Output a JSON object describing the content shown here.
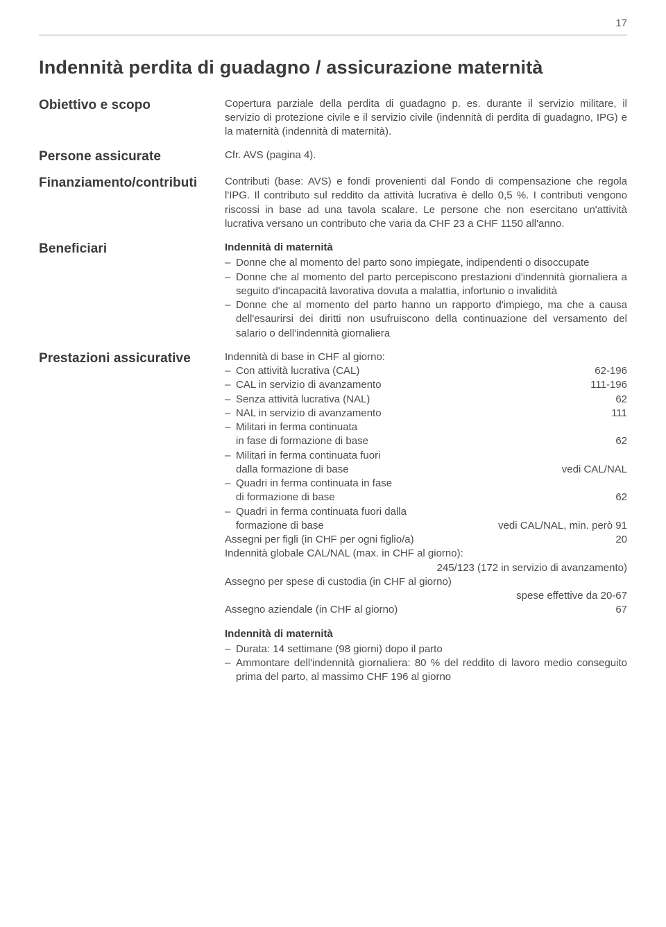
{
  "page_number": "17",
  "main_title": "Indennità perdita di guadagno / assicurazione maternità",
  "colors": {
    "text": "#3a3a3a",
    "body_text": "#4a4a4a",
    "rule": "#9a9a9a",
    "background": "#ffffff"
  },
  "typography": {
    "main_title_fontsize": 27,
    "side_label_fontsize": 19,
    "body_fontsize": 15,
    "subheading_fontsize": 15
  },
  "sections": {
    "obiettivo": {
      "label": "Obiettivo e scopo",
      "text": "Copertura parziale della perdita di guadagno p. es. durante il servizio militare, il servizio di protezione civile e il servizio civile (indennità di perdita di guadagno, IPG) e la maternità (indennità di maternità)."
    },
    "persone": {
      "label": "Persone assicurate",
      "text": "Cfr. AVS (pagina 4)."
    },
    "finanziamento": {
      "label": "Finanziamento/contributi",
      "text": "Contributi (base: AVS) e fondi provenienti dal Fondo di compensazione che regola l'IPG. Il contributo sul reddito da attività lucrativa è dello 0,5 %. I contributi vengono riscossi in base ad una tavola scalare. Le persone che non esercitano un'attività lucrativa versano un contributo che varia da CHF 23 a CHF 1150 all'anno."
    },
    "beneficiari": {
      "label": "Beneficiari",
      "subheading": "Indennità di maternità",
      "items": [
        "Donne che al momento del parto sono impiegate, indipendenti o disoccupate",
        "Donne che al momento del parto percepiscono prestazioni d'indennità giornaliera a seguito d'incapacità lavorativa dovuta a malattia, infortunio o invalidità",
        "Donne che al momento del parto hanno un rapporto d'impiego, ma che a causa dell'esaurirsi dei diritti non usufruiscono della continuazione del versamento del salario o dell'indennità giornaliera"
      ]
    },
    "prestazioni": {
      "label": "Prestazioni assicurative",
      "intro": "Indennità di base in CHF al giorno:",
      "rows": [
        {
          "type": "simple",
          "label": "Con attività lucrativa (CAL)",
          "value": "62-196"
        },
        {
          "type": "simple",
          "label": "CAL in servizio di avanzamento",
          "value": "111-196"
        },
        {
          "type": "simple",
          "label": "Senza attività lucrativa (NAL)",
          "value": "62"
        },
        {
          "type": "simple",
          "label": "NAL in servizio di avanzamento",
          "value": "111"
        },
        {
          "type": "wrap",
          "line1": "Militari in ferma continuata",
          "line2": "in fase di formazione di base",
          "value": "62"
        },
        {
          "type": "wrap",
          "line1": "Militari in ferma continuata fuori",
          "line2": "dalla formazione di base",
          "value": "vedi CAL/NAL"
        },
        {
          "type": "wrap",
          "line1": "Quadri in ferma continuata in fase",
          "line2": "di formazione di base",
          "value": "62"
        },
        {
          "type": "wrap_inline",
          "line1": "Quadri in ferma continuata fuori dalla",
          "line2_left": "formazione di base",
          "line2_right": "vedi CAL/NAL, min. però 91"
        }
      ],
      "assegni_figli": {
        "label": "Assegni per figli (in CHF per ogni figlio/a)",
        "value": "20"
      },
      "globale": {
        "line1": "Indennità globale CAL/NAL (max. in CHF al giorno):",
        "line2": "245/123 (172 in servizio di avanzamento)"
      },
      "custodia": {
        "line1": "Assegno per spese di custodia (in CHF al giorno)",
        "line2": "spese effettive da 20-67"
      },
      "aziendale": {
        "label": "Assegno aziendale (in CHF al giorno)",
        "value": "67"
      },
      "maternita": {
        "subheading": "Indennità di maternità",
        "items": [
          "Durata: 14 settimane (98 giorni) dopo il parto",
          "Ammontare dell'indennità giornaliera: 80 % del reddito di lavoro medio conseguito prima del parto, al massimo CHF 196 al giorno"
        ]
      }
    }
  }
}
